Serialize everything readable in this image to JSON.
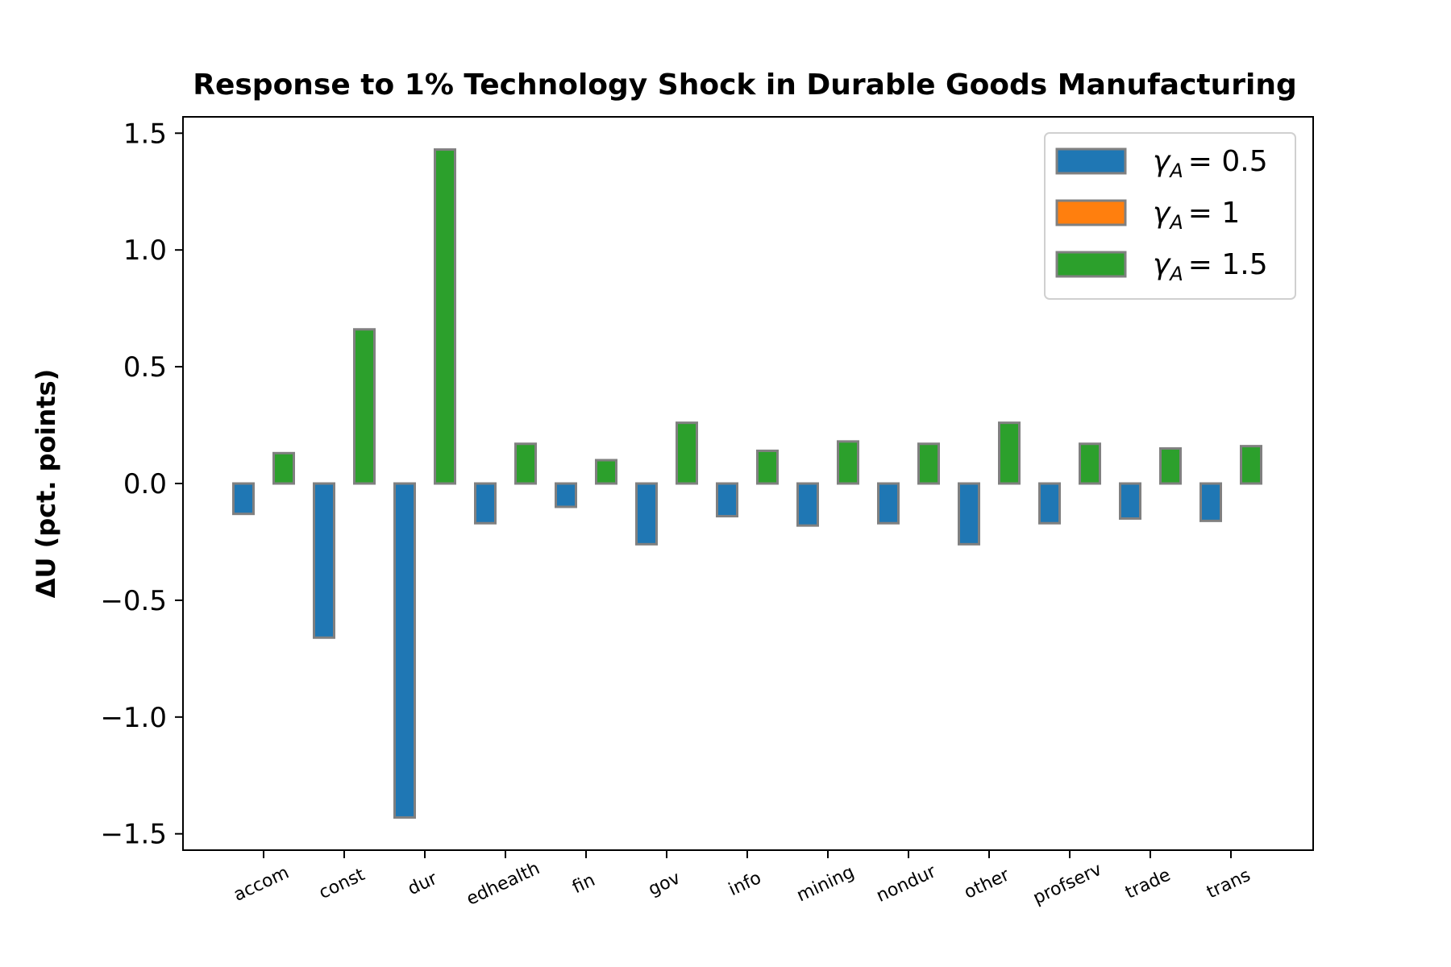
{
  "chart_data": {
    "type": "bar",
    "title": "Response to 1% Technology Shock in Durable Goods Manufacturing",
    "ylabel": "ΔU  (pct. points)",
    "xlabel": "",
    "categories": [
      "accom",
      "const",
      "dur",
      "edhealth",
      "fin",
      "gov",
      "info",
      "mining",
      "nondur",
      "other",
      "profserv",
      "trade",
      "trans"
    ],
    "ylim": [
      -1.57,
      1.57
    ],
    "yticks": [
      1.5,
      1.0,
      0.5,
      0.0,
      -0.5,
      -1.0,
      -1.5
    ],
    "ytick_labels": [
      "1.5",
      "1.0",
      "0.5",
      "0.0",
      "−0.5",
      "−1.0",
      "−1.5"
    ],
    "grid": false,
    "legend_position": "top-right",
    "series": [
      {
        "name": "γ_A = 0.5",
        "color": "#1f77b4",
        "values": [
          -0.13,
          -0.66,
          -1.43,
          -0.17,
          -0.1,
          -0.26,
          -0.14,
          -0.18,
          -0.17,
          -0.26,
          -0.17,
          -0.15,
          -0.16
        ]
      },
      {
        "name": "γ_A = 1",
        "color": "#ff7f0e",
        "values": [
          0,
          0,
          0,
          0,
          0,
          0,
          0,
          0,
          0,
          0,
          0,
          0,
          0
        ]
      },
      {
        "name": "γ_A = 1.5",
        "color": "#2ca02c",
        "values": [
          0.13,
          0.66,
          1.43,
          0.17,
          0.1,
          0.26,
          0.14,
          0.18,
          0.17,
          0.26,
          0.17,
          0.15,
          0.16
        ]
      }
    ]
  }
}
